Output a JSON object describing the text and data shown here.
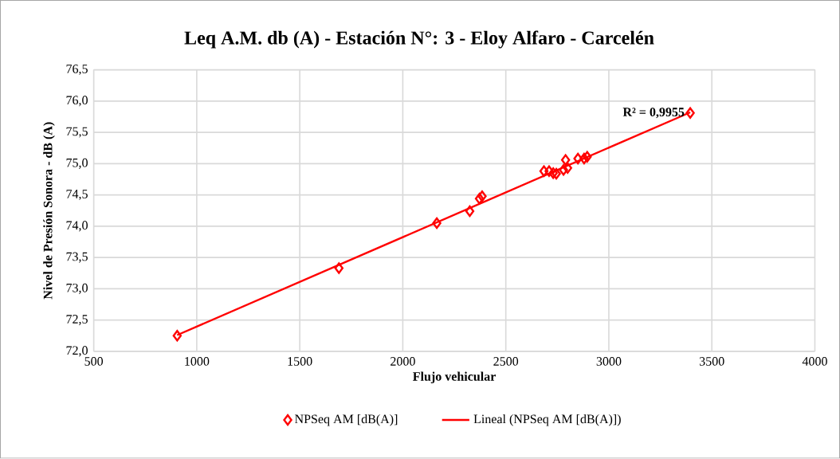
{
  "chart_data": {
    "type": "scatter",
    "title": "Leq A.M.  db (A) - Estación N°: 3 - Eloy Alfaro - Carcelén",
    "xlabel": "Flujo vehicular",
    "ylabel": "Nivel de Presión Sonora - dB (A)",
    "series": [
      {
        "name": "NPSeq AM [dB(A)]",
        "color": "#ff0000",
        "marker": "diamond",
        "x": [
          905,
          1690,
          2165,
          2325,
          2372,
          2385,
          2685,
          2710,
          2730,
          2745,
          2780,
          2790,
          2800,
          2850,
          2880,
          2895,
          3395
        ],
        "values": [
          72.25,
          73.33,
          74.05,
          74.24,
          74.44,
          74.48,
          74.88,
          74.88,
          74.85,
          74.84,
          74.9,
          75.06,
          74.93,
          75.08,
          75.08,
          75.11,
          75.81
        ]
      },
      {
        "name": "Lineal (NPSeq AM [dB(A)])",
        "type": "line",
        "color": "#ff0000",
        "marker": "none",
        "line_style": "solid",
        "x": [
          905,
          3395
        ],
        "values": [
          72.26,
          75.82
        ]
      }
    ],
    "xlim": [
      500,
      4000
    ],
    "xticks": [
      500,
      1000,
      1500,
      2000,
      2500,
      3000,
      3500,
      4000
    ],
    "ylim": [
      72,
      76.5
    ],
    "yticks": [
      {
        "value": 72,
        "label": "72,0"
      },
      {
        "value": 72.5,
        "label": "72,5"
      },
      {
        "value": 73,
        "label": "73,0"
      },
      {
        "value": 73.5,
        "label": "73,5"
      },
      {
        "value": 74,
        "label": "74,0"
      },
      {
        "value": 74.5,
        "label": "74,5"
      },
      {
        "value": 75,
        "label": "75,0"
      },
      {
        "value": 75.5,
        "label": "75,5"
      },
      {
        "value": 76,
        "label": "76,0"
      },
      {
        "value": 76.5,
        "label": "76,5"
      }
    ],
    "annotations": [
      {
        "text": "R² = 0,9955",
        "x": 3395,
        "y": 75.81
      }
    ],
    "grid": true,
    "legend": "bottom"
  }
}
